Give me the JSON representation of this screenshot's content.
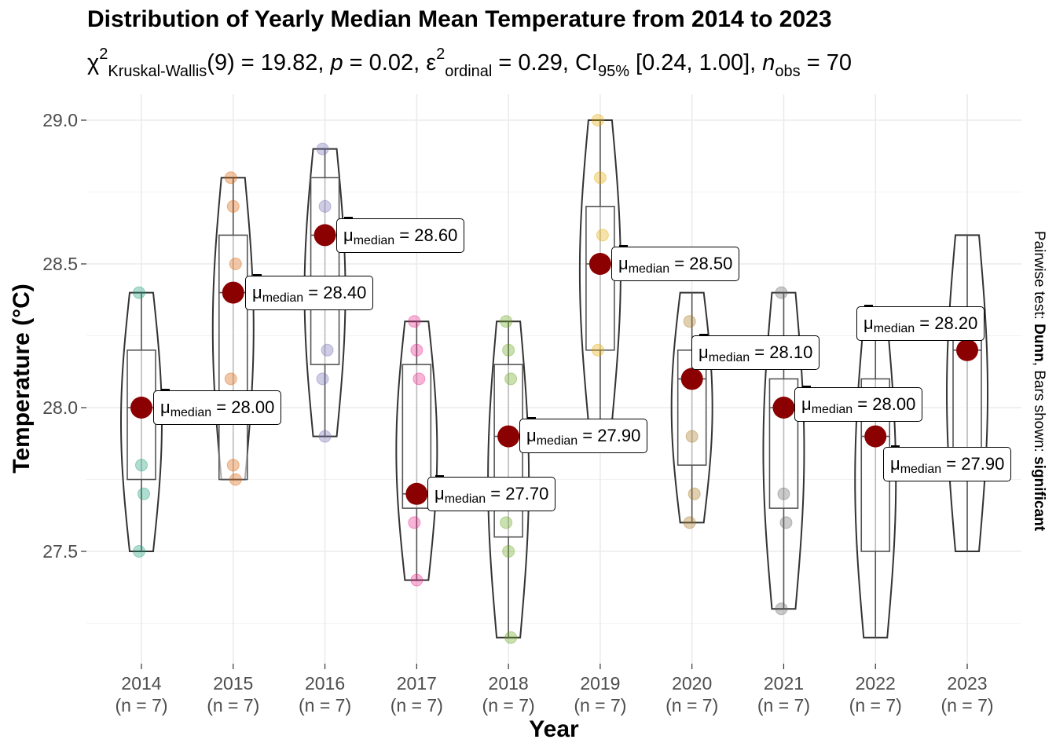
{
  "title": "Distribution of Yearly Median Mean Temperature from 2014 to 2023",
  "subtitle": {
    "chi": "χ",
    "chi_sup": "2",
    "chi_sub": "Kruskal-Wallis",
    "df": "(9) = 19.82, ",
    "p_sym": "p",
    "p_val": " = 0.02, ",
    "eps": "ε",
    "eps_sup": "2",
    "eps_sub": "ordinal",
    "eps_val": " = 0.29, ",
    "ci": "CI",
    "ci_sub": "95%",
    "ci_val": " [0.24, 1.00], ",
    "n_sym": "n",
    "n_sub": "obs",
    "n_val": " = 70"
  },
  "caption": {
    "prefix": "Pairwise test: ",
    "test": "Dunn",
    "mid": ", Bars shown: ",
    "shown": "significant"
  },
  "chart_data": {
    "type": "violin-box-scatter",
    "title": "Distribution of Yearly Median Mean Temperature from 2014 to 2023",
    "xlabel": "Year",
    "ylabel": "Temperature (°C)",
    "ylim": [
      27.1,
      29.2
    ],
    "yticks": [
      "27.5",
      "28.0",
      "28.5",
      "29.0"
    ],
    "grid": true,
    "median_color": "#8B0000",
    "label_prefix": "μ",
    "label_sub": "median",
    "groups": [
      {
        "year": "2014",
        "n_label": "(n = 7)",
        "median": 28.0,
        "label": "= 28.00",
        "q1": 27.75,
        "q3": 28.2,
        "min": 27.5,
        "max": 28.4,
        "color": "#1B9E77",
        "points": [
          28.4,
          27.8,
          27.7,
          27.5
        ]
      },
      {
        "year": "2015",
        "n_label": "(n = 7)",
        "median": 28.4,
        "label": "= 28.40",
        "q1": 27.75,
        "q3": 28.6,
        "min": 27.75,
        "max": 28.8,
        "color": "#D95F02",
        "points": [
          28.8,
          28.7,
          28.5,
          28.1,
          27.8,
          27.75
        ]
      },
      {
        "year": "2016",
        "n_label": "(n = 7)",
        "median": 28.6,
        "label": "= 28.60",
        "q1": 28.15,
        "q3": 28.8,
        "min": 27.9,
        "max": 28.9,
        "color": "#7570B3",
        "points": [
          28.9,
          28.7,
          28.2,
          28.1,
          27.9
        ]
      },
      {
        "year": "2017",
        "n_label": "(n = 7)",
        "median": 27.7,
        "label": "= 27.70",
        "q1": 27.65,
        "q3": 28.15,
        "min": 27.4,
        "max": 28.3,
        "color": "#E7298A",
        "points": [
          28.3,
          28.2,
          28.1,
          27.6,
          27.4
        ]
      },
      {
        "year": "2018",
        "n_label": "(n = 7)",
        "median": 27.9,
        "label": "= 27.90",
        "q1": 27.55,
        "q3": 28.15,
        "min": 27.2,
        "max": 28.3,
        "color": "#66A61E",
        "points": [
          28.3,
          28.2,
          28.1,
          27.6,
          27.5,
          27.2
        ]
      },
      {
        "year": "2019",
        "n_label": "(n = 7)",
        "median": 28.5,
        "label": "= 28.50",
        "q1": 28.2,
        "q3": 28.7,
        "min": 27.95,
        "max": 29.0,
        "color": "#E6AB02",
        "points": [
          29.0,
          28.8,
          28.6,
          28.2
        ]
      },
      {
        "year": "2020",
        "n_label": "(n = 7)",
        "median": 28.1,
        "label": "= 28.10",
        "q1": 27.8,
        "q3": 28.2,
        "min": 27.6,
        "max": 28.4,
        "color": "#A6761D",
        "points": [
          28.3,
          27.9,
          27.7,
          27.6
        ]
      },
      {
        "year": "2021",
        "n_label": "(n = 7)",
        "median": 28.0,
        "label": "= 28.00",
        "q1": 27.65,
        "q3": 28.1,
        "min": 27.3,
        "max": 28.4,
        "color": "#666666",
        "points": [
          28.4,
          27.7,
          27.6,
          27.3
        ]
      },
      {
        "year": "2022",
        "n_label": "(n = 7)",
        "median": 27.9,
        "label": "= 27.90",
        "q1": 27.5,
        "q3": 28.1,
        "min": 27.2,
        "max": 28.3,
        "color": "#FFFFFF",
        "points": []
      },
      {
        "year": "2023",
        "n_label": "(n = 7)",
        "median": 28.2,
        "label": "= 28.20",
        "q1": 27.85,
        "q3": 28.25,
        "min": 27.5,
        "max": 28.6,
        "color": "#FFFFFF",
        "points": []
      }
    ]
  }
}
